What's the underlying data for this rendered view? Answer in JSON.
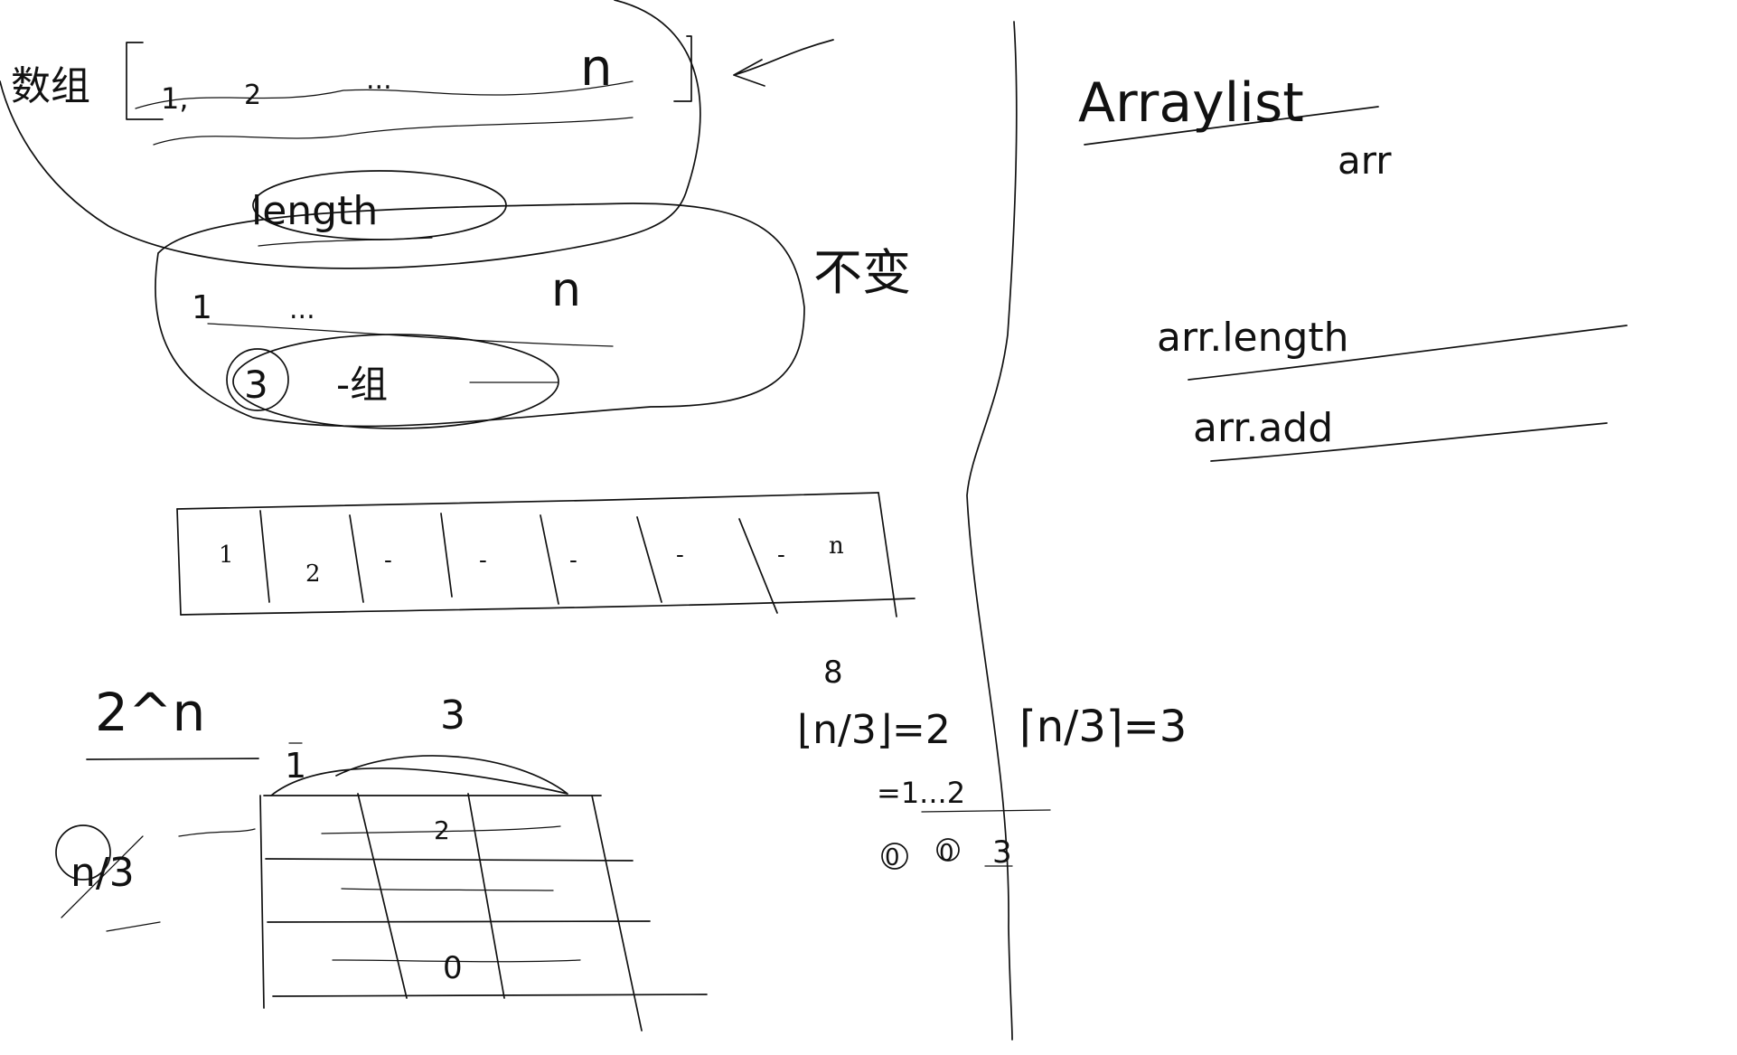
{
  "whiteboard": {
    "left_notes": {
      "array_label": "数组",
      "array_items": [
        "1,",
        "2",
        "...",
        "n"
      ],
      "length_label": "length",
      "second_row": [
        "1",
        "...",
        "n"
      ],
      "group_note": "3",
      "group_suffix": "-组",
      "unchanged_label": "不变"
    },
    "cell_row": {
      "cells": [
        "1",
        "2",
        "-",
        "-",
        "-",
        "-",
        "-",
        "n"
      ]
    },
    "lower_left": {
      "power_note": "2^n",
      "three": "3",
      "one": "1",
      "n_over_three": "n/3",
      "table_values": [
        "2",
        "0"
      ]
    },
    "middle_math": {
      "floor_expr": "⌊n/3⌋=2",
      "ceil_expr": "⌈n/3⌉=3",
      "mark_8": "8",
      "sequence": "=1...2",
      "circles": [
        "0",
        "0",
        "3"
      ]
    },
    "right_notes": {
      "title": "Arraylist",
      "subtitle": "arr",
      "method_length": "arr.length",
      "method_add": "arr.add"
    }
  }
}
